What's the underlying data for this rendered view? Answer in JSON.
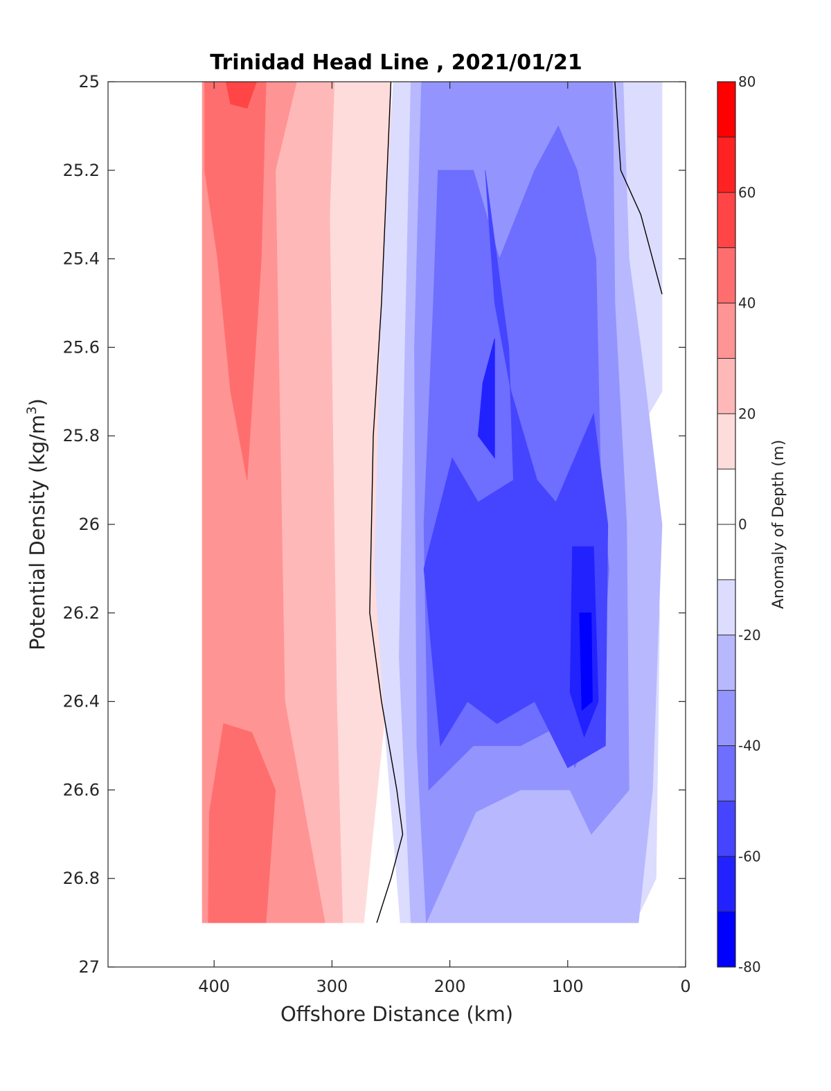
{
  "chart_data": {
    "type": "contour",
    "title": "Trinidad Head Line , 2021/01/21",
    "xlabel": "Offshore Distance (km)",
    "ylabel": "Potential Density (kg/m^3)",
    "ylabel_base": "Potential Density (kg/m",
    "ylabel_sup": "3",
    "ylabel_close": ")",
    "xlim": [
      490,
      0
    ],
    "ylim": [
      25,
      27
    ],
    "x_reversed": true,
    "y_reversed": true,
    "xticks": [
      "400",
      "300",
      "200",
      "100",
      "0"
    ],
    "xtick_values": [
      400,
      300,
      200,
      100,
      0
    ],
    "yticks": [
      "25",
      "25.2",
      "25.4",
      "25.6",
      "25.8",
      "26",
      "26.2",
      "26.4",
      "26.6",
      "26.8",
      "27"
    ],
    "ytick_values": [
      25,
      25.2,
      25.4,
      25.6,
      25.8,
      26,
      26.2,
      26.4,
      26.6,
      26.8,
      27
    ],
    "colorbar": {
      "label": "Anomaly of Depth (m)",
      "range": [
        -80,
        80
      ],
      "tick_labels": [
        "80",
        "60",
        "40",
        "20",
        "0",
        "-20",
        "-40",
        "-60",
        "-80"
      ],
      "tick_values": [
        80,
        60,
        40,
        20,
        0,
        -20,
        -40,
        -60,
        -80
      ],
      "level_step": 10,
      "colors_high_to_low": [
        "#ff0000",
        "#ff2222",
        "#ff4545",
        "#ff6e6e",
        "#ff9494",
        "#ffb8b8",
        "#ffdcdc",
        "#ffffff",
        "#ffffff",
        "#dcdcff",
        "#b8b8ff",
        "#9494ff",
        "#6e6eff",
        "#4545ff",
        "#2222ff",
        "#0000ff"
      ]
    },
    "zero_contour_color": "#000000",
    "regions": [
      {
        "name": "positive-anomaly-outer",
        "level": 10,
        "color": "#ffdcdc",
        "polygon": [
          [
            410,
            25
          ],
          [
            250,
            25
          ],
          [
            250,
            26.3
          ],
          [
            273,
            26.9
          ],
          [
            410,
            26.9
          ]
        ]
      },
      {
        "name": "positive-anomaly-20",
        "level": 20,
        "color": "#ffb8b8",
        "polygon": [
          [
            410,
            25
          ],
          [
            298,
            25
          ],
          [
            302,
            25.3
          ],
          [
            296,
            26.4
          ],
          [
            291,
            26.9
          ],
          [
            410,
            26.9
          ]
        ]
      },
      {
        "name": "positive-anomaly-30",
        "level": 30,
        "color": "#ff9494",
        "polygon": [
          [
            410,
            25
          ],
          [
            330,
            25
          ],
          [
            348,
            25.2
          ],
          [
            340,
            26.4
          ],
          [
            306,
            26.9
          ],
          [
            410,
            26.9
          ]
        ]
      },
      {
        "name": "positive-anomaly-40",
        "level": 40,
        "color": "#ff6e6e",
        "polygon": [
          [
            408,
            25
          ],
          [
            356,
            25
          ],
          [
            360,
            25.4
          ],
          [
            372,
            25.9
          ],
          [
            386,
            25.7
          ],
          [
            397,
            25.4
          ],
          [
            408,
            25.2
          ]
        ]
      },
      {
        "name": "positive-anomaly-40-deep",
        "level": 40,
        "color": "#ff6e6e",
        "polygon": [
          [
            392,
            26.45
          ],
          [
            368,
            26.47
          ],
          [
            348,
            26.6
          ],
          [
            356,
            26.9
          ],
          [
            405,
            26.9
          ],
          [
            404,
            26.65
          ]
        ]
      },
      {
        "name": "positive-anomaly-50",
        "level": 50,
        "color": "#ff4545",
        "polygon": [
          [
            390,
            25
          ],
          [
            364,
            25
          ],
          [
            372,
            25.06
          ],
          [
            386,
            25.05
          ]
        ]
      },
      {
        "name": "surface-positive-nearshore",
        "level": 10,
        "color": "#ffdcdc",
        "polygon": [
          [
            50,
            25
          ],
          [
            20,
            25
          ],
          [
            20,
            25.22
          ],
          [
            44,
            25.2
          ],
          [
            51,
            25.1
          ]
        ]
      },
      {
        "name": "negative-anomaly-10",
        "level": -10,
        "color": "#dcdcff",
        "polygon": [
          [
            248,
            25
          ],
          [
            20,
            25
          ],
          [
            20,
            25.7
          ],
          [
            31,
            25.75
          ],
          [
            22,
            26.2
          ],
          [
            25,
            26.8
          ],
          [
            43,
            26.9
          ],
          [
            242,
            26.9
          ],
          [
            254,
            26.5
          ],
          [
            264,
            26.1
          ],
          [
            258,
            25.5
          ]
        ]
      },
      {
        "name": "negative-anomaly-20",
        "level": -20,
        "color": "#b8b8ff",
        "polygon": [
          [
            233,
            25
          ],
          [
            53,
            25
          ],
          [
            48,
            25.4
          ],
          [
            38,
            25.6
          ],
          [
            20,
            26.0
          ],
          [
            28,
            26.6
          ],
          [
            40,
            26.9
          ],
          [
            233,
            26.9
          ],
          [
            243,
            26.3
          ],
          [
            238,
            25.6
          ]
        ]
      },
      {
        "name": "negative-anomaly-30",
        "level": -30,
        "color": "#9494ff",
        "polygon": [
          [
            224,
            25
          ],
          [
            62,
            25
          ],
          [
            60,
            25.5
          ],
          [
            50,
            26.0
          ],
          [
            48,
            26.6
          ],
          [
            80,
            26.7
          ],
          [
            98,
            26.6
          ],
          [
            140,
            26.6
          ],
          [
            178,
            26.65
          ],
          [
            220,
            26.9
          ],
          [
            228,
            26.5
          ],
          [
            230,
            25.6
          ]
        ]
      },
      {
        "name": "negative-anomaly-40",
        "level": -40,
        "color": "#6e6eff",
        "polygon": [
          [
            210,
            25.2
          ],
          [
            180,
            25.2
          ],
          [
            158,
            25.4
          ],
          [
            128,
            25.2
          ],
          [
            108,
            25.1
          ],
          [
            92,
            25.2
          ],
          [
            76,
            25.4
          ],
          [
            72,
            25.9
          ],
          [
            65,
            26.1
          ],
          [
            72,
            26.4
          ],
          [
            94,
            26.55
          ],
          [
            104,
            26.45
          ],
          [
            140,
            26.5
          ],
          [
            180,
            26.5
          ],
          [
            218,
            26.6
          ],
          [
            222,
            26.0
          ],
          [
            214,
            25.5
          ]
        ]
      },
      {
        "name": "negative-anomaly-50",
        "level": -50,
        "color": "#4545ff",
        "polygon": [
          [
            170,
            25.2
          ],
          [
            150,
            25.6
          ],
          [
            146,
            25.9
          ],
          [
            176,
            25.95
          ],
          [
            198,
            25.85
          ],
          [
            222,
            26.1
          ],
          [
            208,
            26.5
          ],
          [
            185,
            26.4
          ],
          [
            160,
            26.45
          ],
          [
            128,
            26.4
          ],
          [
            100,
            26.55
          ],
          [
            68,
            26.5
          ],
          [
            66,
            26.0
          ],
          [
            78,
            25.75
          ],
          [
            110,
            25.95
          ],
          [
            126,
            25.9
          ],
          [
            148,
            25.7
          ],
          [
            162,
            25.5
          ]
        ]
      },
      {
        "name": "negative-anomaly-60-upper",
        "level": -60,
        "color": "#2222ff",
        "polygon": [
          [
            172,
            25.68
          ],
          [
            162,
            25.58
          ],
          [
            162,
            25.85
          ],
          [
            176,
            25.8
          ]
        ]
      },
      {
        "name": "negative-anomaly-60-lower",
        "level": -60,
        "color": "#2222ff",
        "polygon": [
          [
            96,
            26.05
          ],
          [
            78,
            26.05
          ],
          [
            74,
            26.4
          ],
          [
            86,
            26.48
          ],
          [
            98,
            26.38
          ]
        ]
      },
      {
        "name": "negative-anomaly-70",
        "level": -70,
        "color": "#0000ff",
        "polygon": [
          [
            90,
            26.2
          ],
          [
            80,
            26.2
          ],
          [
            79,
            26.4
          ],
          [
            88,
            26.42
          ]
        ]
      }
    ],
    "zero_contours": [
      {
        "name": "zero-contour-offshore",
        "points": [
          [
            250,
            25
          ],
          [
            258,
            25.5
          ],
          [
            265,
            25.8
          ],
          [
            268,
            26.2
          ],
          [
            258,
            26.4
          ],
          [
            245,
            26.6
          ],
          [
            240,
            26.7
          ],
          [
            250,
            26.8
          ],
          [
            262,
            26.9
          ]
        ]
      },
      {
        "name": "zero-contour-nearshore",
        "points": [
          [
            60,
            25
          ],
          [
            55,
            25.2
          ],
          [
            38,
            25.3
          ],
          [
            20,
            25.48
          ]
        ]
      }
    ]
  }
}
